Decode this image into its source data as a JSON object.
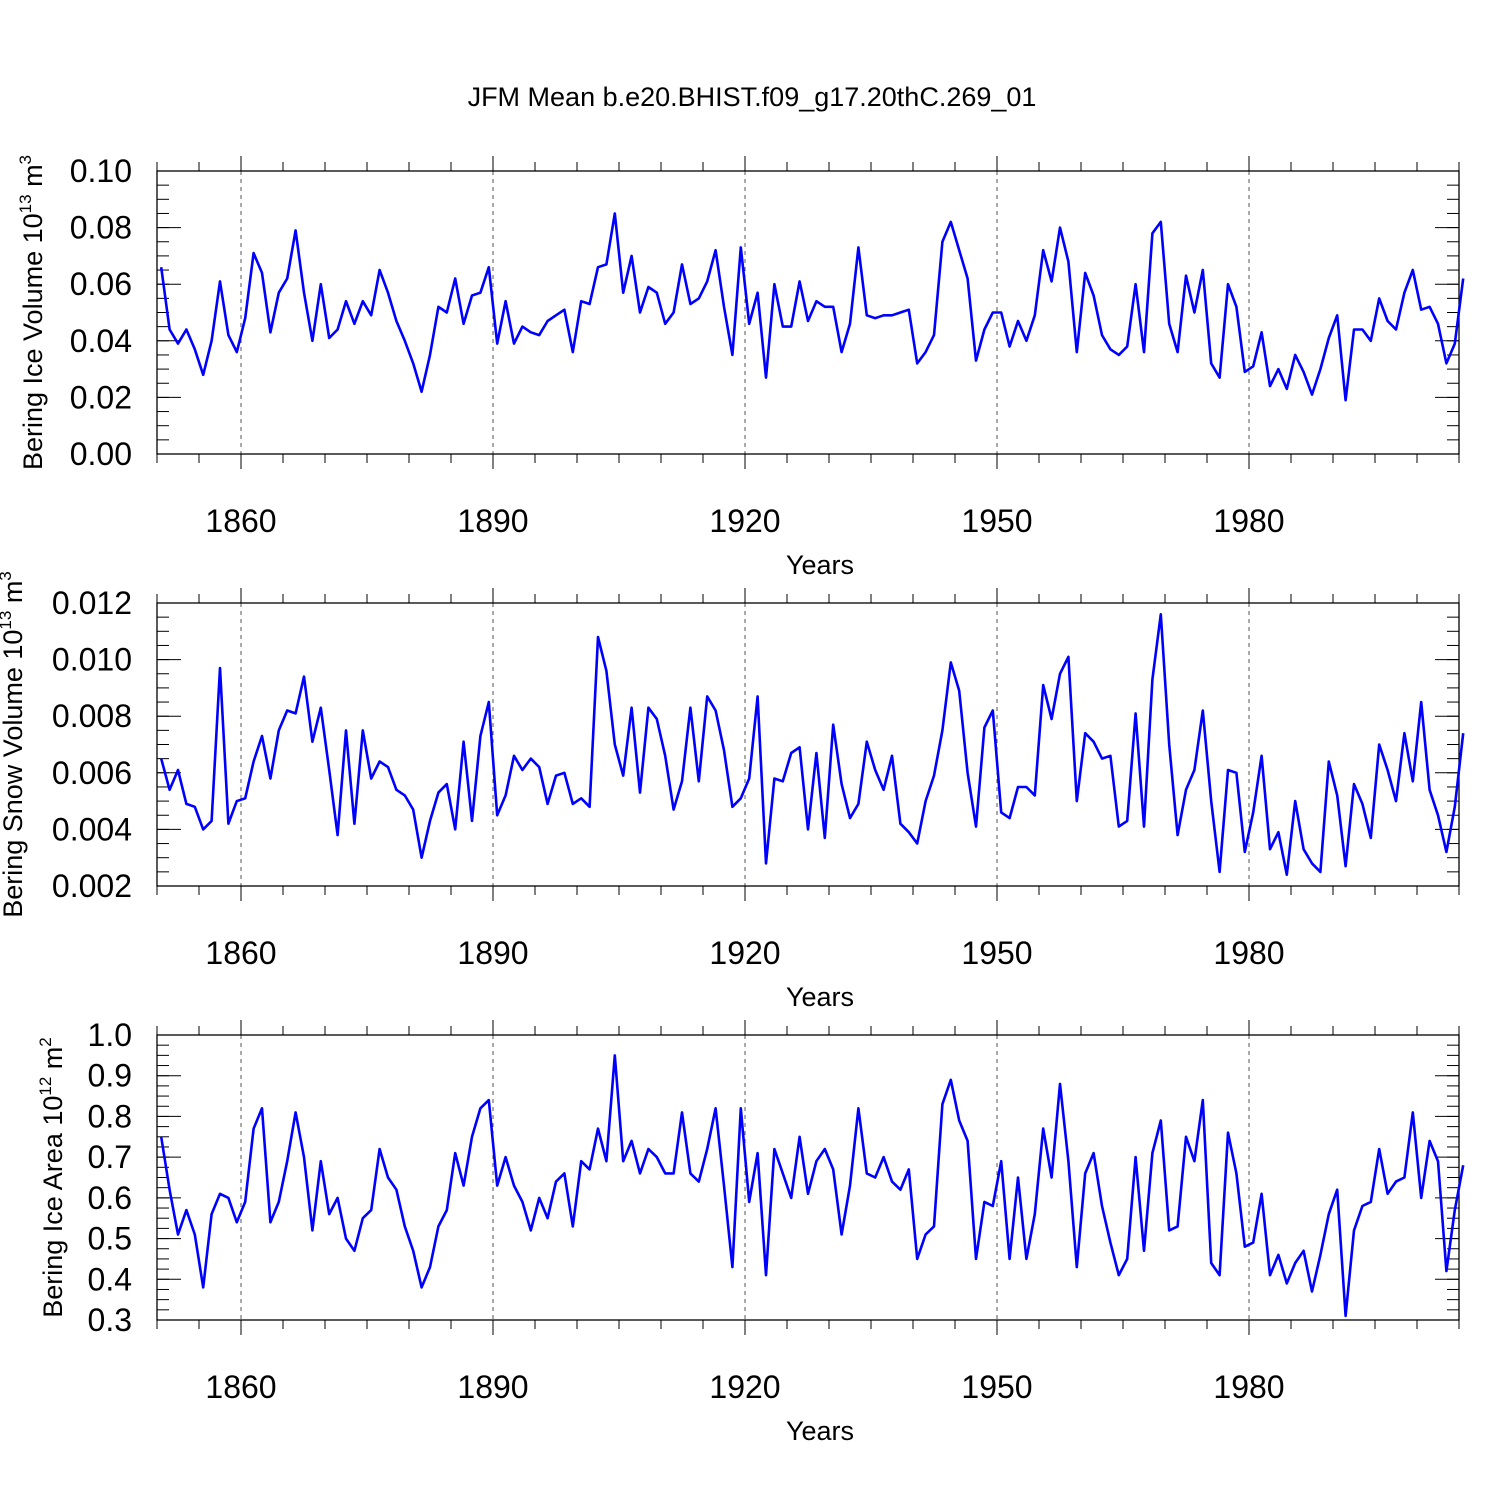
{
  "title": "JFM Mean b.e20.BHIST.f09_g17.20thC.269_01",
  "colors": {
    "series": "#0000ff",
    "axis": "#000000",
    "grid": "#555555"
  },
  "chart_data": [
    {
      "type": "line",
      "name": "ice-volume",
      "ylabel_main": "Bering Ice Volume 10",
      "ylabel_exp": "13",
      "ylabel_unit": " m",
      "ylabel_unit_exp": "3",
      "xlabel": "Years",
      "xlim": [
        1850,
        2005
      ],
      "ylim": [
        0.0,
        0.1
      ],
      "xticks": [
        1860,
        1890,
        1920,
        1950,
        1980
      ],
      "xtick_labels": [
        "1860",
        "1890",
        "1920",
        "1950",
        "1980"
      ],
      "yticks": [
        0.0,
        0.02,
        0.04,
        0.06,
        0.08,
        0.1
      ],
      "ytick_labels": [
        "0.00",
        "0.02",
        "0.04",
        "0.06",
        "0.08",
        "0.10"
      ],
      "minor_y_step": 0.005,
      "x_start": 1850,
      "values": [
        0.066,
        0.044,
        0.039,
        0.044,
        0.037,
        0.028,
        0.04,
        0.061,
        0.042,
        0.036,
        0.048,
        0.071,
        0.064,
        0.043,
        0.057,
        0.062,
        0.079,
        0.057,
        0.04,
        0.06,
        0.041,
        0.044,
        0.054,
        0.046,
        0.054,
        0.049,
        0.065,
        0.057,
        0.047,
        0.04,
        0.032,
        0.022,
        0.035,
        0.052,
        0.05,
        0.062,
        0.046,
        0.056,
        0.057,
        0.066,
        0.039,
        0.054,
        0.039,
        0.045,
        0.043,
        0.042,
        0.047,
        0.049,
        0.051,
        0.036,
        0.054,
        0.053,
        0.066,
        0.067,
        0.085,
        0.057,
        0.07,
        0.05,
        0.059,
        0.057,
        0.046,
        0.05,
        0.067,
        0.053,
        0.055,
        0.061,
        0.072,
        0.052,
        0.035,
        0.073,
        0.046,
        0.057,
        0.027,
        0.06,
        0.045,
        0.045,
        0.061,
        0.047,
        0.054,
        0.052,
        0.052,
        0.036,
        0.046,
        0.073,
        0.049,
        0.048,
        0.049,
        0.049,
        0.05,
        0.051,
        0.032,
        0.036,
        0.042,
        0.075,
        0.082,
        0.072,
        0.062,
        0.033,
        0.044,
        0.05,
        0.05,
        0.038,
        0.047,
        0.04,
        0.049,
        0.072,
        0.061,
        0.08,
        0.068,
        0.036,
        0.064,
        0.056,
        0.042,
        0.037,
        0.035,
        0.038,
        0.06,
        0.036,
        0.078,
        0.082,
        0.046,
        0.036,
        0.063,
        0.05,
        0.065,
        0.032,
        0.027,
        0.06,
        0.052,
        0.029,
        0.031,
        0.043,
        0.024,
        0.03,
        0.023,
        0.035,
        0.029,
        0.021,
        0.03,
        0.041,
        0.049,
        0.019,
        0.044,
        0.044,
        0.04,
        0.055,
        0.047,
        0.044,
        0.057,
        0.065,
        0.051,
        0.052,
        0.046,
        0.032,
        0.039,
        0.062
      ]
    },
    {
      "type": "line",
      "name": "snow-volume",
      "ylabel_main": "Bering Snow Volume 10",
      "ylabel_exp": "13",
      "ylabel_unit": " m",
      "ylabel_unit_exp": "3",
      "xlabel": "Years",
      "xlim": [
        1850,
        2005
      ],
      "ylim": [
        0.002,
        0.012
      ],
      "xticks": [
        1860,
        1890,
        1920,
        1950,
        1980
      ],
      "xtick_labels": [
        "1860",
        "1890",
        "1920",
        "1950",
        "1980"
      ],
      "yticks": [
        0.002,
        0.004,
        0.006,
        0.008,
        0.01,
        0.012
      ],
      "ytick_labels": [
        "0.002",
        "0.004",
        "0.006",
        "0.008",
        "0.010",
        "0.012"
      ],
      "minor_y_step": 0.0005,
      "x_start": 1850,
      "values": [
        0.0065,
        0.0054,
        0.0061,
        0.0049,
        0.0048,
        0.004,
        0.0043,
        0.0097,
        0.0042,
        0.005,
        0.0051,
        0.0064,
        0.0073,
        0.0058,
        0.0075,
        0.0082,
        0.0081,
        0.0094,
        0.0071,
        0.0083,
        0.0061,
        0.0038,
        0.0075,
        0.0042,
        0.0075,
        0.0058,
        0.0064,
        0.0062,
        0.0054,
        0.0052,
        0.0047,
        0.003,
        0.0043,
        0.0053,
        0.0056,
        0.004,
        0.0071,
        0.0043,
        0.0073,
        0.0085,
        0.0045,
        0.0052,
        0.0066,
        0.0061,
        0.0065,
        0.0062,
        0.0049,
        0.0059,
        0.006,
        0.0049,
        0.0051,
        0.0048,
        0.0108,
        0.0096,
        0.007,
        0.0059,
        0.0083,
        0.0053,
        0.0083,
        0.0079,
        0.0066,
        0.0047,
        0.0057,
        0.0083,
        0.0057,
        0.0087,
        0.0082,
        0.0068,
        0.0048,
        0.0051,
        0.0058,
        0.0087,
        0.0028,
        0.0058,
        0.0057,
        0.0067,
        0.0069,
        0.004,
        0.0067,
        0.0037,
        0.0077,
        0.0056,
        0.0044,
        0.0049,
        0.0071,
        0.0061,
        0.0054,
        0.0066,
        0.0042,
        0.0039,
        0.0035,
        0.005,
        0.0059,
        0.0075,
        0.0099,
        0.0089,
        0.006,
        0.0041,
        0.0076,
        0.0082,
        0.0046,
        0.0044,
        0.0055,
        0.0055,
        0.0052,
        0.0091,
        0.0079,
        0.0095,
        0.0101,
        0.005,
        0.0074,
        0.0071,
        0.0065,
        0.0066,
        0.0041,
        0.0043,
        0.0081,
        0.0041,
        0.0093,
        0.0116,
        0.007,
        0.0038,
        0.0054,
        0.0061,
        0.0082,
        0.005,
        0.0025,
        0.0061,
        0.006,
        0.0032,
        0.0046,
        0.0066,
        0.0033,
        0.0039,
        0.0024,
        0.005,
        0.0033,
        0.0028,
        0.0025,
        0.0064,
        0.0052,
        0.0027,
        0.0056,
        0.0049,
        0.0037,
        0.007,
        0.0061,
        0.005,
        0.0074,
        0.0057,
        0.0085,
        0.0054,
        0.0045,
        0.0032,
        0.0048,
        0.0074
      ]
    },
    {
      "type": "line",
      "name": "ice-area",
      "ylabel_main": "Bering Ice Area 10",
      "ylabel_exp": "12",
      "ylabel_unit": " m",
      "ylabel_unit_exp": "2",
      "xlabel": "Years",
      "xlim": [
        1850,
        2005
      ],
      "ylim": [
        0.3,
        1.0
      ],
      "xticks": [
        1860,
        1890,
        1920,
        1950,
        1980
      ],
      "xtick_labels": [
        "1860",
        "1890",
        "1920",
        "1950",
        "1980"
      ],
      "yticks": [
        0.3,
        0.4,
        0.5,
        0.6,
        0.7,
        0.8,
        0.9,
        1.0
      ],
      "ytick_labels": [
        "0.3",
        "0.4",
        "0.5",
        "0.6",
        "0.7",
        "0.8",
        "0.9",
        "1.0"
      ],
      "minor_y_step": 0.025,
      "x_start": 1850,
      "values": [
        0.75,
        0.62,
        0.51,
        0.57,
        0.51,
        0.38,
        0.56,
        0.61,
        0.6,
        0.54,
        0.59,
        0.77,
        0.82,
        0.54,
        0.59,
        0.69,
        0.81,
        0.7,
        0.52,
        0.69,
        0.56,
        0.6,
        0.5,
        0.47,
        0.55,
        0.57,
        0.72,
        0.65,
        0.62,
        0.53,
        0.47,
        0.38,
        0.43,
        0.53,
        0.57,
        0.71,
        0.63,
        0.75,
        0.82,
        0.84,
        0.63,
        0.7,
        0.63,
        0.59,
        0.52,
        0.6,
        0.55,
        0.64,
        0.66,
        0.53,
        0.69,
        0.67,
        0.77,
        0.69,
        0.95,
        0.69,
        0.74,
        0.66,
        0.72,
        0.7,
        0.66,
        0.66,
        0.81,
        0.66,
        0.64,
        0.72,
        0.82,
        0.63,
        0.43,
        0.82,
        0.59,
        0.71,
        0.41,
        0.72,
        0.66,
        0.6,
        0.75,
        0.61,
        0.69,
        0.72,
        0.67,
        0.51,
        0.63,
        0.82,
        0.66,
        0.65,
        0.7,
        0.64,
        0.62,
        0.67,
        0.45,
        0.51,
        0.53,
        0.83,
        0.89,
        0.79,
        0.74,
        0.45,
        0.59,
        0.58,
        0.69,
        0.45,
        0.65,
        0.45,
        0.56,
        0.77,
        0.65,
        0.88,
        0.69,
        0.43,
        0.66,
        0.71,
        0.58,
        0.49,
        0.41,
        0.45,
        0.7,
        0.47,
        0.71,
        0.79,
        0.52,
        0.53,
        0.75,
        0.69,
        0.84,
        0.44,
        0.41,
        0.76,
        0.66,
        0.48,
        0.49,
        0.61,
        0.41,
        0.46,
        0.39,
        0.44,
        0.47,
        0.37,
        0.46,
        0.56,
        0.62,
        0.31,
        0.52,
        0.58,
        0.59,
        0.72,
        0.61,
        0.64,
        0.65,
        0.81,
        0.6,
        0.74,
        0.69,
        0.42,
        0.57,
        0.68
      ]
    }
  ]
}
